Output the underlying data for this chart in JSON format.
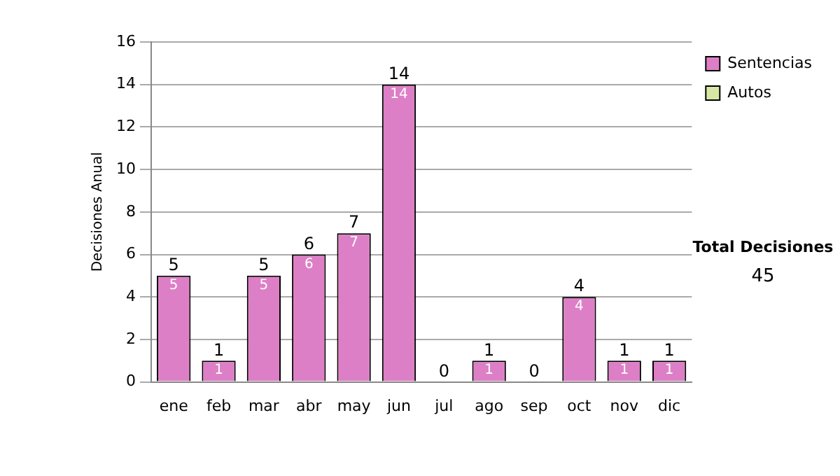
{
  "chart_data": {
    "type": "bar",
    "stacked": true,
    "ylabel": "Decisiones Anual",
    "categories": [
      "ene",
      "feb",
      "mar",
      "abr",
      "may",
      "jun",
      "jul",
      "ago",
      "sep",
      "oct",
      "nov",
      "dic"
    ],
    "series": [
      {
        "name": "Sentencias",
        "color": "#dd7fc6",
        "values": [
          5,
          1,
          5,
          6,
          7,
          14,
          0,
          1,
          0,
          4,
          1,
          1
        ],
        "value_labels": [
          "5",
          "1",
          "5",
          "6",
          "7",
          "14",
          null,
          "1",
          null,
          "4",
          "1",
          "1"
        ]
      },
      {
        "name": "Autos",
        "color": "#d8e8a4",
        "values": [
          0,
          0,
          0,
          0,
          0,
          0,
          0,
          0,
          0,
          0,
          0,
          0
        ]
      }
    ],
    "totals": [
      "5",
      "1",
      "5",
      "6",
      "7",
      "14",
      "0",
      "1",
      "0",
      "4",
      "1",
      "1"
    ],
    "ylim": [
      0,
      16
    ],
    "yticks": [
      0,
      2,
      4,
      6,
      8,
      10,
      12,
      14,
      16
    ],
    "grid": "y",
    "legend": "right",
    "annotations": [
      "Total Decisiones",
      "45"
    ]
  }
}
